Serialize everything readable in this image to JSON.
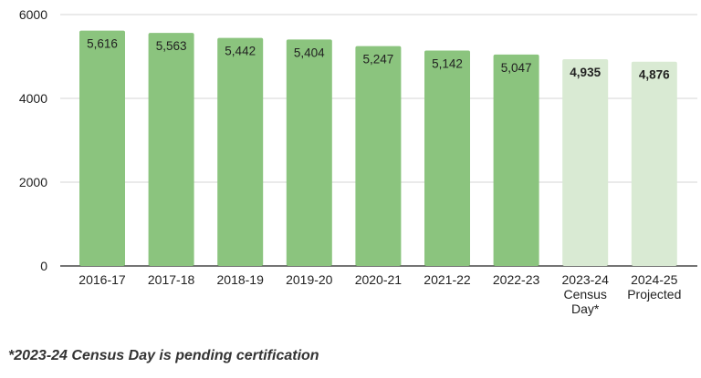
{
  "chart_data": {
    "type": "bar",
    "categories": [
      "2016-17",
      "2017-18",
      "2018-19",
      "2019-20",
      "2020-21",
      "2021-22",
      "2022-23",
      "2023-24 Census Day*",
      "2024-25 Projected"
    ],
    "category_lines": [
      [
        "2016-17"
      ],
      [
        "2017-18"
      ],
      [
        "2018-19"
      ],
      [
        "2019-20"
      ],
      [
        "2020-21"
      ],
      [
        "2021-22"
      ],
      [
        "2022-23"
      ],
      [
        "2023-24",
        "Census",
        "Day*"
      ],
      [
        "2024-25",
        "Projected"
      ]
    ],
    "values": [
      5616,
      5563,
      5442,
      5404,
      5247,
      5142,
      5047,
      4935,
      4876
    ],
    "data_labels": [
      "5,616",
      "5,563",
      "5,442",
      "5,404",
      "5,247",
      "5,142",
      "5,047",
      "4,935",
      "4,876"
    ],
    "emphasized": [
      false,
      false,
      false,
      false,
      false,
      false,
      false,
      true,
      true
    ],
    "bar_colors": [
      "#8bc47e",
      "#8bc47e",
      "#8bc47e",
      "#8bc47e",
      "#8bc47e",
      "#8bc47e",
      "#8bc47e",
      "#d9ead3",
      "#d9ead3"
    ],
    "yticks": [
      0,
      2000,
      4000,
      6000
    ],
    "ylim": [
      0,
      6000
    ],
    "grid": true,
    "title": "",
    "xlabel": "",
    "ylabel": ""
  },
  "footnote": "*2023-24 Census Day is pending certification"
}
